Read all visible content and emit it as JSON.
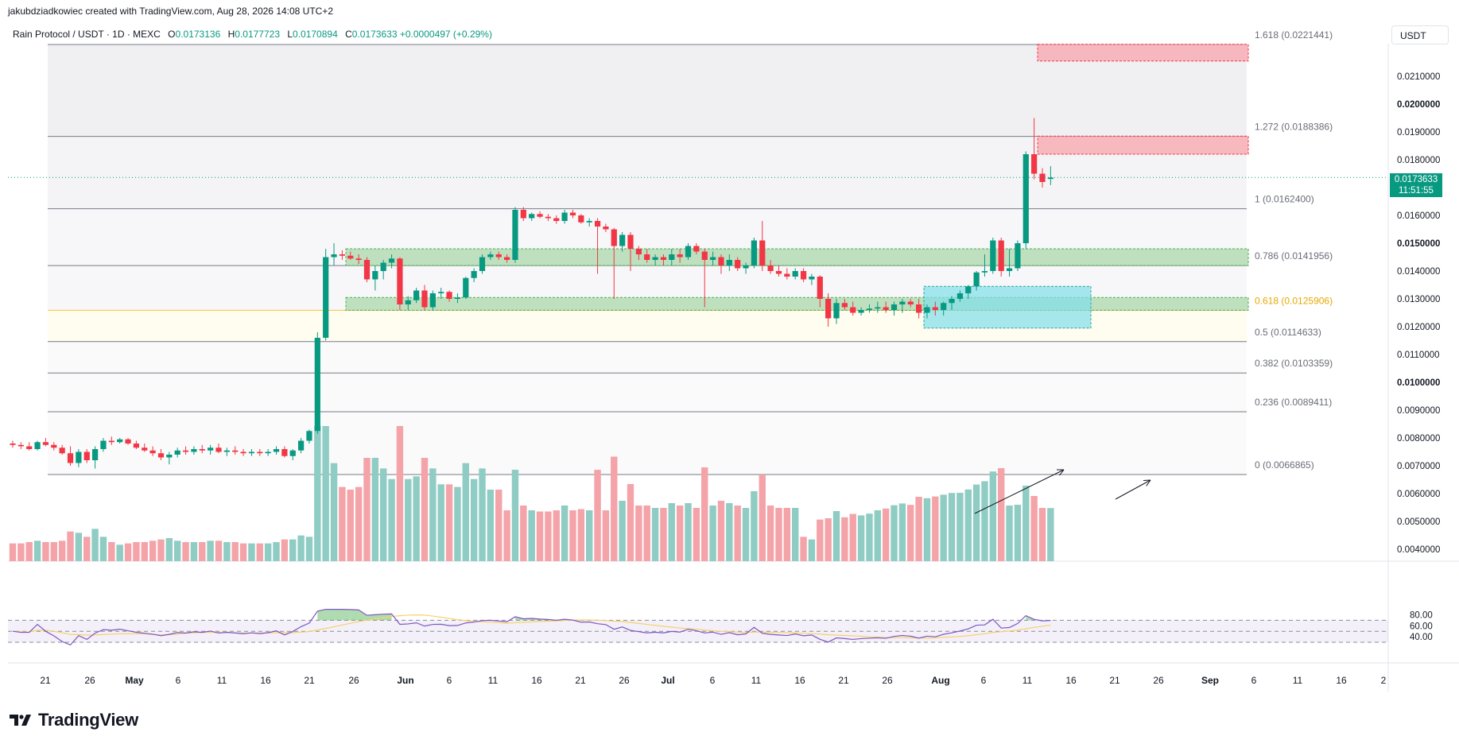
{
  "header": {
    "credit": "jakubdziadkowiec created with TradingView.com, Aug 28, 2026 14:08 UTC+2",
    "symbol": "Rain Protocol / USDT · 1D · MEXC",
    "open_label": "O",
    "open": "0.0173136",
    "high_label": "H",
    "high": "0.0177723",
    "low_label": "L",
    "low": "0.0170894",
    "close_label": "C",
    "close": "0.0173633",
    "change": "+0.0000497 (+0.29%)"
  },
  "currency_button": "USDT",
  "last_price": {
    "value": "0.0173633",
    "countdown": "11:51:55"
  },
  "branding": {
    "name": "TradingView"
  },
  "colors": {
    "up": "#089981",
    "down": "#f23645",
    "vol_up": "#8fccc4",
    "vol_down": "#f4a3a8",
    "fib_line": "#787b86",
    "fib_618": "#f5c242",
    "rsi": "#7e57c2",
    "rsi_ma": "#f7d16a"
  },
  "chart_data": {
    "type": "candlestick",
    "timeframe": "1D",
    "price_axis_labels": [
      "0.0210000",
      "0.0200000",
      "0.0190000",
      "0.0180000",
      "0.0160000",
      "0.0150000",
      "0.0140000",
      "0.0130000",
      "0.0120000",
      "0.0110000",
      "0.0100000",
      "0.0090000",
      "0.0080000",
      "0.0070000",
      "0.0060000",
      "0.0050000",
      "0.0040000"
    ],
    "time_axis_labels": [
      "21",
      "26",
      "May",
      "6",
      "11",
      "16",
      "21",
      "26",
      "Jun",
      "6",
      "11",
      "16",
      "21",
      "26",
      "Jul",
      "6",
      "11",
      "16",
      "21",
      "26",
      "Aug",
      "6",
      "11",
      "16",
      "21",
      "26",
      "Sep",
      "6",
      "11",
      "16",
      "2"
    ],
    "fibonacci": [
      {
        "label": "1.618 (0.0221441)",
        "value": 0.0221441
      },
      {
        "label": "1.272 (0.0188386)",
        "value": 0.0188386
      },
      {
        "label": "1 (0.0162400)",
        "value": 0.01624
      },
      {
        "label": "0.786 (0.0141956)",
        "value": 0.0141956
      },
      {
        "label": "0.618 (0.0125906)",
        "value": 0.0125906
      },
      {
        "label": "0.5 (0.0114633)",
        "value": 0.0114633
      },
      {
        "label": "0.382 (0.0103359)",
        "value": 0.0103359
      },
      {
        "label": "0.236 (0.0089411)",
        "value": 0.0089411
      },
      {
        "label": "0 (0.0066865)",
        "value": 0.0066865
      }
    ],
    "zones": {
      "resistance": [
        [
          0.02155,
          0.02215
        ],
        [
          0.0182,
          0.01885
        ]
      ],
      "support": [
        [
          0.0142,
          0.0148
        ],
        [
          0.01259,
          0.01305
        ]
      ],
      "accumulation": [
        0.01195,
        0.01345
      ]
    },
    "candles": [
      [
        0.0078,
        0.0079,
        0.00765,
        0.00775
      ],
      [
        0.00775,
        0.00785,
        0.0076,
        0.0077
      ],
      [
        0.0077,
        0.00785,
        0.00755,
        0.0076
      ],
      [
        0.0076,
        0.0079,
        0.00755,
        0.00785
      ],
      [
        0.00785,
        0.008,
        0.0077,
        0.00775
      ],
      [
        0.00775,
        0.00785,
        0.00755,
        0.00765
      ],
      [
        0.00765,
        0.00775,
        0.0074,
        0.00745
      ],
      [
        0.00745,
        0.0077,
        0.007,
        0.0071
      ],
      [
        0.0071,
        0.0076,
        0.00695,
        0.0075
      ],
      [
        0.0075,
        0.0076,
        0.0071,
        0.0072
      ],
      [
        0.0072,
        0.0077,
        0.0069,
        0.0076
      ],
      [
        0.0076,
        0.008,
        0.0075,
        0.0079
      ],
      [
        0.0079,
        0.00805,
        0.00775,
        0.00785
      ],
      [
        0.00785,
        0.008,
        0.0078,
        0.00795
      ],
      [
        0.00795,
        0.008,
        0.00775,
        0.0078
      ],
      [
        0.0078,
        0.0079,
        0.0076,
        0.00765
      ],
      [
        0.00765,
        0.0078,
        0.0075,
        0.00755
      ],
      [
        0.00755,
        0.0077,
        0.00735,
        0.00745
      ],
      [
        0.00745,
        0.0076,
        0.0072,
        0.0073
      ],
      [
        0.0073,
        0.0075,
        0.00705,
        0.0074
      ],
      [
        0.0074,
        0.00765,
        0.0073,
        0.00755
      ],
      [
        0.00755,
        0.0077,
        0.0074,
        0.0075
      ],
      [
        0.0075,
        0.0077,
        0.0074,
        0.0076
      ],
      [
        0.0076,
        0.00775,
        0.00745,
        0.00755
      ],
      [
        0.00755,
        0.00775,
        0.0074,
        0.00765
      ],
      [
        0.00765,
        0.0078,
        0.00745,
        0.0075
      ],
      [
        0.0075,
        0.00765,
        0.00735,
        0.00755
      ],
      [
        0.00755,
        0.0077,
        0.0074,
        0.0075
      ],
      [
        0.0075,
        0.0076,
        0.00735,
        0.00745
      ],
      [
        0.00745,
        0.0076,
        0.00735,
        0.0075
      ],
      [
        0.0075,
        0.0076,
        0.00735,
        0.00745
      ],
      [
        0.00745,
        0.0076,
        0.00735,
        0.0075
      ],
      [
        0.0075,
        0.0077,
        0.0074,
        0.0076
      ],
      [
        0.0076,
        0.0077,
        0.0073,
        0.00735
      ],
      [
        0.00735,
        0.0076,
        0.0072,
        0.00755
      ],
      [
        0.00755,
        0.008,
        0.00745,
        0.0079
      ],
      [
        0.0079,
        0.0083,
        0.0078,
        0.00825
      ],
      [
        0.00825,
        0.0118,
        0.00815,
        0.0116
      ],
      [
        0.0116,
        0.0148,
        0.0115,
        0.0145
      ],
      [
        0.0145,
        0.015,
        0.0142,
        0.0146
      ],
      [
        0.0146,
        0.01475,
        0.0144,
        0.01455
      ],
      [
        0.01455,
        0.0147,
        0.0144,
        0.01445
      ],
      [
        0.01445,
        0.0146,
        0.01425,
        0.0144
      ],
      [
        0.0144,
        0.0145,
        0.0136,
        0.0137
      ],
      [
        0.0137,
        0.0142,
        0.0133,
        0.014
      ],
      [
        0.014,
        0.0144,
        0.0137,
        0.0143
      ],
      [
        0.0143,
        0.0146,
        0.0141,
        0.01445
      ],
      [
        0.01445,
        0.0145,
        0.0126,
        0.0128
      ],
      [
        0.0128,
        0.0131,
        0.0126,
        0.01295
      ],
      [
        0.01295,
        0.0134,
        0.01285,
        0.0133
      ],
      [
        0.0133,
        0.0135,
        0.0126,
        0.0127
      ],
      [
        0.0127,
        0.0133,
        0.0126,
        0.0132
      ],
      [
        0.0132,
        0.0134,
        0.013,
        0.01325
      ],
      [
        0.01325,
        0.0133,
        0.0129,
        0.013
      ],
      [
        0.013,
        0.0132,
        0.01285,
        0.01305
      ],
      [
        0.01305,
        0.0138,
        0.013,
        0.01375
      ],
      [
        0.01375,
        0.0141,
        0.0136,
        0.014
      ],
      [
        0.014,
        0.0146,
        0.0139,
        0.0145
      ],
      [
        0.0145,
        0.0147,
        0.0144,
        0.0146
      ],
      [
        0.0146,
        0.0147,
        0.0144,
        0.0145
      ],
      [
        0.0145,
        0.0146,
        0.0143,
        0.0144
      ],
      [
        0.0144,
        0.0163,
        0.0143,
        0.0162
      ],
      [
        0.0162,
        0.0163,
        0.0158,
        0.0159
      ],
      [
        0.0159,
        0.0161,
        0.0158,
        0.01605
      ],
      [
        0.01605,
        0.01615,
        0.0159,
        0.01595
      ],
      [
        0.01595,
        0.01605,
        0.0158,
        0.0159
      ],
      [
        0.0159,
        0.016,
        0.0157,
        0.0158
      ],
      [
        0.0158,
        0.0162,
        0.0157,
        0.0161
      ],
      [
        0.0161,
        0.0162,
        0.0159,
        0.016
      ],
      [
        0.016,
        0.01605,
        0.0157,
        0.01575
      ],
      [
        0.01575,
        0.0159,
        0.0156,
        0.0158
      ],
      [
        0.0158,
        0.0159,
        0.0139,
        0.0156
      ],
      [
        0.0156,
        0.0157,
        0.0154,
        0.0155
      ],
      [
        0.0155,
        0.01555,
        0.013,
        0.0149
      ],
      [
        0.0149,
        0.0154,
        0.0147,
        0.0153
      ],
      [
        0.0153,
        0.0154,
        0.014,
        0.0148
      ],
      [
        0.0148,
        0.0149,
        0.0144,
        0.0146
      ],
      [
        0.0146,
        0.0148,
        0.0143,
        0.0144
      ],
      [
        0.0144,
        0.0146,
        0.0142,
        0.0145
      ],
      [
        0.0145,
        0.0146,
        0.0142,
        0.0144
      ],
      [
        0.0144,
        0.0148,
        0.0142,
        0.0146
      ],
      [
        0.0146,
        0.0148,
        0.0143,
        0.0145
      ],
      [
        0.0145,
        0.015,
        0.0144,
        0.0149
      ],
      [
        0.0149,
        0.015,
        0.0146,
        0.0147
      ],
      [
        0.0147,
        0.0148,
        0.0127,
        0.0144
      ],
      [
        0.0144,
        0.0147,
        0.0142,
        0.0145
      ],
      [
        0.0145,
        0.0146,
        0.0139,
        0.0142
      ],
      [
        0.0142,
        0.0146,
        0.014,
        0.0144
      ],
      [
        0.0144,
        0.0145,
        0.014,
        0.0141
      ],
      [
        0.0141,
        0.0143,
        0.0139,
        0.0142
      ],
      [
        0.0142,
        0.0152,
        0.0141,
        0.0151
      ],
      [
        0.0151,
        0.0158,
        0.014,
        0.0142
      ],
      [
        0.0142,
        0.0144,
        0.0139,
        0.014
      ],
      [
        0.014,
        0.0142,
        0.0138,
        0.0139
      ],
      [
        0.0139,
        0.0141,
        0.0137,
        0.0138
      ],
      [
        0.0138,
        0.0141,
        0.0137,
        0.014
      ],
      [
        0.014,
        0.0141,
        0.0136,
        0.0137
      ],
      [
        0.0137,
        0.0139,
        0.0135,
        0.0138
      ],
      [
        0.0138,
        0.01385,
        0.0127,
        0.013
      ],
      [
        0.013,
        0.0132,
        0.012,
        0.0123
      ],
      [
        0.0123,
        0.013,
        0.0121,
        0.01285
      ],
      [
        0.01285,
        0.013,
        0.0126,
        0.0127
      ],
      [
        0.0127,
        0.0129,
        0.0124,
        0.0125
      ],
      [
        0.0125,
        0.0127,
        0.0124,
        0.0126
      ],
      [
        0.0126,
        0.0128,
        0.0125,
        0.01265
      ],
      [
        0.01265,
        0.0129,
        0.0125,
        0.0127
      ],
      [
        0.0127,
        0.0129,
        0.0125,
        0.0126
      ],
      [
        0.0126,
        0.0129,
        0.0124,
        0.0128
      ],
      [
        0.0128,
        0.013,
        0.0125,
        0.0129
      ],
      [
        0.0129,
        0.013,
        0.0127,
        0.0128
      ],
      [
        0.0128,
        0.013,
        0.0123,
        0.0125
      ],
      [
        0.0125,
        0.0128,
        0.0123,
        0.0127
      ],
      [
        0.0127,
        0.0129,
        0.0124,
        0.0126
      ],
      [
        0.0126,
        0.0129,
        0.0124,
        0.01285
      ],
      [
        0.01285,
        0.0131,
        0.0126,
        0.013
      ],
      [
        0.013,
        0.0133,
        0.0129,
        0.0132
      ],
      [
        0.0132,
        0.0135,
        0.013,
        0.01345
      ],
      [
        0.01345,
        0.014,
        0.0133,
        0.01395
      ],
      [
        0.01395,
        0.0146,
        0.0138,
        0.014
      ],
      [
        0.014,
        0.0152,
        0.0139,
        0.0151
      ],
      [
        0.0151,
        0.0152,
        0.0138,
        0.014
      ],
      [
        0.014,
        0.0148,
        0.0138,
        0.0141
      ],
      [
        0.0141,
        0.0151,
        0.014,
        0.015
      ],
      [
        0.015,
        0.0183,
        0.0148,
        0.0182
      ],
      [
        0.0182,
        0.0195,
        0.0173,
        0.0175
      ],
      [
        0.0175,
        0.0177,
        0.017,
        0.0172
      ],
      [
        0.01731,
        0.01777,
        0.01709,
        0.01736
      ]
    ],
    "volume_axis_hidden": true,
    "rsi": {
      "axis_labels": [
        "80.00",
        "60.00",
        "40.00"
      ],
      "upper": 70,
      "middle": 50,
      "lower": 30
    }
  }
}
